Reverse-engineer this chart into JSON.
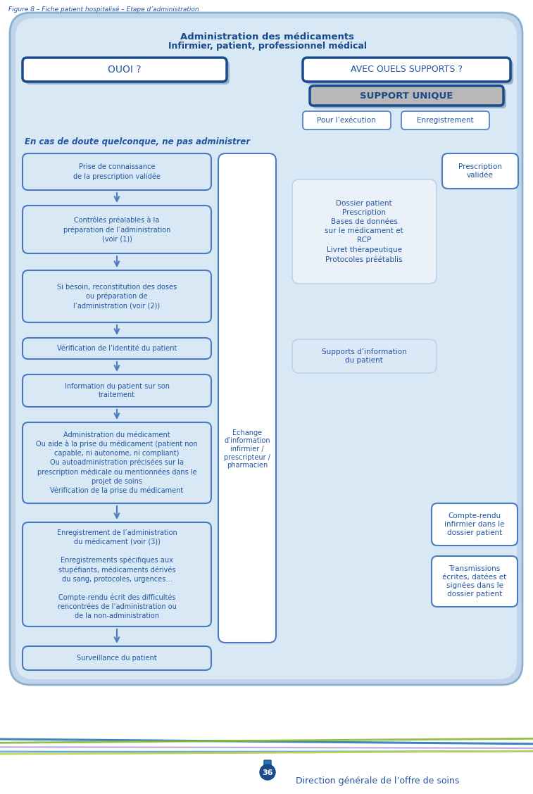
{
  "title_figure": "Figure 8 – Fiche patient hospitalisé – Etape d’administration",
  "header_line1": "Administration des médicaments",
  "header_line2": "Infirmier, patient, professionnel médical",
  "ouoi_text": "OUOI ?",
  "supports_text": "AVEC OUELS SUPPORTS ?",
  "support_unique_text": "SUPPORT UNIQUE",
  "pour_execution": "Pour l’exécution",
  "enregistrement_label": "Enregistrement",
  "warning_text": "En cas de doute quelconque, ne pas administrer",
  "flow_boxes": [
    "Prise de connaissance\nde la prescription validée",
    "Contrôles préalables à la\npréparation de l’administration\n(voir (1))",
    "Si besoin, reconstitution des doses\nou préparation de\nl’administration (voir (2))",
    "Vérification de l’identité du patient",
    "Information du patient sur son\ntraitement",
    "Administration du médicament\nOu aide à la prise du médicament (patient non\ncapable, ni autonome, ni compliant)\nOu autoadministration précisées sur la\nprescription médicale ou mentionnées dans le\nprojet de soins\nVérification de la prise du médicament",
    "Enregistrement de l’administration\ndu médicament (voir (3))\n\nEnregistrements spécifiques aux\nstupéfiants, médicaments dérivés\ndu sang, protocoles, urgences…\n\nCompte-rendu écrit des difficultés\nrencontrées de l’administration ou\nde la non-administration",
    "Surveillance du patient"
  ],
  "middle_text": "Echange\nd’information\ninfirmier /\nprescripteur /\npharmacien",
  "dossier_text": "Dossier patient\nPrescription\nBases de données\nsur le médicament et\nRCP\nLivret thérapeutique\nProtocoles préétablis",
  "prescription_text": "Prescription\nvalidée",
  "supports_info_text": "Supports d’information\ndu patient",
  "compte_rendu_text": "Compte-rendu\ninfirmier dans le\ndossier patient",
  "transmissions_text": "Transmissions\nécrites, datées et\nsignées dans le\ndossier patient",
  "footer_page": "36",
  "footer_text": "Direction générale de l’offre de soins",
  "c_dark": "#1a4a8a",
  "c_mid": "#4a7abf",
  "c_text": "#2255a0",
  "c_outer_bg": "#c0d5ea",
  "c_inner_bg": "#d8e8f5",
  "c_white": "#ffffff",
  "c_shadow": "#9ab0c8",
  "c_su_bg": "#b8b8b8",
  "wave_colors": [
    "#3a8fc8",
    "#5aaad0",
    "#90b840",
    "#c8d060",
    "#b0a0d0"
  ],
  "wave_params": [
    [
      1055,
      10,
      0.008,
      0.5,
      2.0
    ],
    [
      1060,
      12,
      0.01,
      1.2,
      1.8
    ],
    [
      1065,
      10,
      0.009,
      2.5,
      1.8
    ],
    [
      1070,
      8,
      0.012,
      4.0,
      1.5
    ],
    [
      1075,
      6,
      0.007,
      0.0,
      1.5
    ]
  ]
}
